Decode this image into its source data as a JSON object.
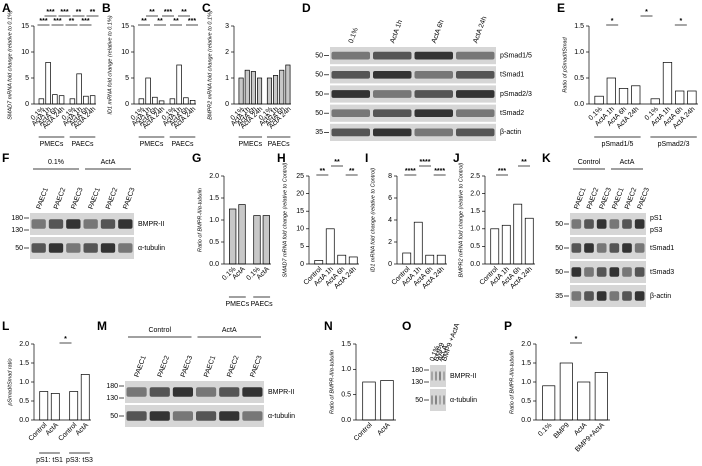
{
  "chart_data": [
    {
      "type": "bar",
      "panel": "A",
      "ylabel": "SMAD7 mRNA fold change (relative to 0.1%)",
      "categories": [
        "0.1%",
        "ActA 1h",
        "ActA 6h",
        "ActA 24h",
        "0.1%",
        "ActA 1h",
        "ActA 6h",
        "ActA 24h"
      ],
      "groups": [
        "PMECs",
        "PAECs"
      ],
      "values": [
        1,
        8,
        1.8,
        1.6,
        1,
        5.8,
        1.5,
        1.6
      ],
      "color": "#ffffff",
      "ylim": [
        0,
        15
      ],
      "yticks": [
        0,
        5,
        10,
        15
      ],
      "annotations": [
        "***",
        "***",
        "***",
        "***",
        "**",
        "**",
        "***",
        "**"
      ]
    },
    {
      "type": "bar",
      "panel": "B",
      "ylabel": "ID1 mRNA fold change (relative to 0.1%)",
      "categories": [
        "0.1%",
        "ActA 1h",
        "ActA 6h",
        "ActA 24h",
        "0.1%",
        "ActA 1h",
        "ActA 6h",
        "ActA 24h"
      ],
      "groups": [
        "PMECs",
        "PAECs"
      ],
      "values": [
        1,
        5,
        1.3,
        0.6,
        1,
        7.5,
        1.2,
        0.7
      ],
      "color": "#ffffff",
      "ylim": [
        0,
        15
      ],
      "yticks": [
        0,
        5,
        10,
        15
      ],
      "annotations": [
        "**",
        "**",
        "**",
        "***",
        "**",
        "**",
        "***"
      ]
    },
    {
      "type": "bar",
      "panel": "C",
      "ylabel": "BMPR2 mRNA fold change (relative to 0.1%)",
      "categories": [
        "0.1%",
        "ActA 1h",
        "ActA 6h",
        "ActA 24h",
        "0.1%",
        "ActA 1h",
        "ActA 6h",
        "ActA 24h"
      ],
      "groups": [
        "PMECs",
        "PAECs"
      ],
      "values": [
        1,
        1.3,
        1.25,
        1.0,
        1,
        1.1,
        1.3,
        1.5
      ],
      "color": "#c8c8c8",
      "ylim": [
        0,
        3
      ],
      "yticks": [
        0,
        1,
        2,
        3
      ],
      "annotations": []
    },
    {
      "type": "bar",
      "panel": "E",
      "ylabel": "Ratio of pSmad/tSmad",
      "categories": [
        "0.1%",
        "ActA 1h",
        "ActA 6h",
        "ActA 24h",
        "0.1%",
        "ActA 1h",
        "ActA 6h",
        "ActA 24h"
      ],
      "groups": [
        "pSmad1/5",
        "pSmad2/3"
      ],
      "values": [
        0.15,
        0.5,
        0.3,
        0.35,
        0.1,
        0.8,
        0.25,
        0.25
      ],
      "color": "#ffffff",
      "ylim": [
        0,
        1.5
      ],
      "yticks": [
        {
          "value": 0,
          "label": "0.0"
        },
        {
          "value": 0.5,
          "label": "0.5"
        },
        {
          "value": 1,
          "label": "1.0"
        },
        {
          "value": 1.5,
          "label": "1.5"
        }
      ],
      "annotations": [
        "*",
        "*",
        "*"
      ]
    },
    {
      "type": "bar",
      "panel": "G",
      "ylabel": "Ratio of BMPR-II/α-tubulin",
      "categories": [
        "0.1%",
        "ActA",
        "0.1%",
        "ActA"
      ],
      "groups": [
        "PMECs",
        "PAECs"
      ],
      "values": [
        1.25,
        1.35,
        1.1,
        1.1
      ],
      "color": "#c8c8c8",
      "ylim": [
        0,
        2
      ],
      "yticks": [
        {
          "value": 0,
          "label": "0.0"
        },
        {
          "value": 0.5,
          "label": "0.5"
        },
        {
          "value": 1,
          "label": "1.0"
        },
        {
          "value": 1.5,
          "label": "1.5"
        },
        {
          "value": 2,
          "label": "2.0"
        }
      ],
      "annotations": []
    },
    {
      "type": "bar",
      "panel": "H",
      "ylabel": "SMAD7 mRNA fold change (relative to Control)",
      "categories": [
        "Control",
        "ActA 1h",
        "ActA 6h",
        "ActA 24h"
      ],
      "values": [
        1,
        10,
        2.5,
        2
      ],
      "color": "#ffffff",
      "ylim": [
        0,
        25
      ],
      "yticks": [
        0,
        5,
        10,
        15,
        20,
        25
      ],
      "annotations": [
        "**",
        "**",
        "**"
      ]
    },
    {
      "type": "bar",
      "panel": "I",
      "ylabel": "ID1 mRNA fold change (relative to Control)",
      "categories": [
        "Control",
        "ActA 1h",
        "ActA 6h",
        "ActA 24h"
      ],
      "values": [
        1,
        3.8,
        0.8,
        0.8
      ],
      "color": "#ffffff",
      "ylim": [
        0,
        8
      ],
      "yticks": [
        0,
        2,
        4,
        6,
        8
      ],
      "annotations": [
        "****",
        "****",
        "****"
      ]
    },
    {
      "type": "bar",
      "panel": "J",
      "ylabel": "BMPR2 mRNA fold change (relative to Control)",
      "categories": [
        "Control",
        "ActA 1h",
        "ActA 6h",
        "ActA 24h"
      ],
      "values": [
        1,
        1.1,
        1.7,
        1.3
      ],
      "color": "#ffffff",
      "ylim": [
        0,
        2.5
      ],
      "yticks": [
        {
          "value": 0,
          "label": "0.0"
        },
        {
          "value": 0.5,
          "label": "0.5"
        },
        {
          "value": 1,
          "label": "1.0"
        },
        {
          "value": 1.5,
          "label": "1.5"
        },
        {
          "value": 2,
          "label": "2.0"
        },
        {
          "value": 2.5,
          "label": "2.5"
        }
      ],
      "annotations": [
        "***",
        "**"
      ]
    },
    {
      "type": "bar",
      "panel": "L",
      "ylabel": "pSmad/tSmad ratio",
      "categories": [
        "Control",
        "ActA",
        "Control",
        "ActA"
      ],
      "groups": [
        "pS1: tS1",
        "pS3: tS3"
      ],
      "values": [
        0.75,
        0.7,
        0.75,
        1.2
      ],
      "color": "#ffffff",
      "ylim": [
        0,
        2
      ],
      "yticks": [
        {
          "value": 0,
          "label": "0.0"
        },
        {
          "value": 0.5,
          "label": "0.5"
        },
        {
          "value": 1,
          "label": "1.0"
        },
        {
          "value": 1.5,
          "label": "1.5"
        },
        {
          "value": 2,
          "label": "2.0"
        }
      ],
      "annotations": [
        "*"
      ]
    },
    {
      "type": "bar",
      "panel": "N",
      "ylabel": "Ratio of BMPR-II/α-tubulin",
      "categories": [
        "Control",
        "ActA"
      ],
      "values": [
        0.75,
        0.78
      ],
      "color": "#ffffff",
      "ylim": [
        0,
        1.5
      ],
      "yticks": [
        {
          "value": 0,
          "label": "0.0"
        },
        {
          "value": 0.5,
          "label": "0.5"
        },
        {
          "value": 1,
          "label": "1.0"
        },
        {
          "value": 1.5,
          "label": "1.5"
        }
      ],
      "annotations": []
    },
    {
      "type": "bar",
      "panel": "P",
      "ylabel": "Ratio of BMPR-II/α-tubulin",
      "categories": [
        "0.1%",
        "BMP9",
        "ActA",
        "BMP9+ActA"
      ],
      "values": [
        0.9,
        1.5,
        1.0,
        1.25
      ],
      "color": "#ffffff",
      "ylim": [
        0,
        2
      ],
      "yticks": [
        {
          "value": 0,
          "label": "0.0"
        },
        {
          "value": 0.5,
          "label": "0.5"
        },
        {
          "value": 1,
          "label": "1.0"
        },
        {
          "value": 1.5,
          "label": "1.5"
        },
        {
          "value": 2,
          "label": "2.0"
        }
      ],
      "annotations": [
        "*"
      ]
    }
  ],
  "blots": [
    {
      "panel": "D",
      "lanes": [
        "0.1%",
        "ActA 1h",
        "ActA 6h",
        "ActA 24h"
      ],
      "rows": [
        {
          "labels": [
            "pSmad1/5"
          ],
          "markers": [
            50
          ]
        },
        {
          "labels": [
            "tSmad1"
          ],
          "markers": [
            50
          ]
        },
        {
          "labels": [
            "pSmad2/3"
          ],
          "markers": [
            50
          ]
        },
        {
          "labels": [
            "tSmad2"
          ],
          "markers": [
            50
          ]
        },
        {
          "labels": [
            "β-actin"
          ],
          "markers": [
            35
          ]
        }
      ]
    },
    {
      "panel": "F",
      "groups": [
        "0.1%",
        "ActA"
      ],
      "lanes": [
        "PAEC1",
        "PAEC2",
        "PAEC3",
        "PAEC1",
        "PAEC2",
        "PAEC3"
      ],
      "rows": [
        {
          "labels": [
            "BMPR-II"
          ],
          "markers": [
            180,
            130
          ]
        },
        {
          "labels": [
            "α-tubulin"
          ],
          "markers": [
            50
          ]
        }
      ]
    },
    {
      "panel": "K",
      "groups": [
        "Control",
        "ActA"
      ],
      "lanes": [
        "PAEC1",
        "PAEC2",
        "PAEC3",
        "PAEC1",
        "PAEC2",
        "PAEC3"
      ],
      "rows": [
        {
          "labels": [
            "pS1",
            "pS3"
          ],
          "markers": [
            50
          ]
        },
        {
          "labels": [
            "tSmad1"
          ],
          "markers": [
            50
          ]
        },
        {
          "labels": [
            "tSmad3"
          ],
          "markers": [
            50
          ]
        },
        {
          "labels": [
            "β-actin"
          ],
          "markers": [
            35
          ]
        }
      ]
    },
    {
      "panel": "M",
      "groups": [
        "Control",
        "ActA"
      ],
      "lanes": [
        "PAEC1",
        "PAEC2",
        "PAEC3",
        "PAEC1",
        "PAEC2",
        "PAEC3"
      ],
      "rows": [
        {
          "labels": [
            "BMPR-II"
          ],
          "markers": [
            180,
            130
          ]
        },
        {
          "labels": [
            "α-tubulin"
          ],
          "markers": [
            50
          ]
        }
      ]
    },
    {
      "panel": "O",
      "lanes": [
        "0.1%",
        "BMP9",
        "Act A",
        "BMP9 +ActA"
      ],
      "rows": [
        {
          "labels": [
            "BMPR-II"
          ],
          "markers": [
            180,
            130
          ]
        },
        {
          "labels": [
            "α-tubulin"
          ],
          "markers": [
            50
          ]
        }
      ]
    }
  ]
}
